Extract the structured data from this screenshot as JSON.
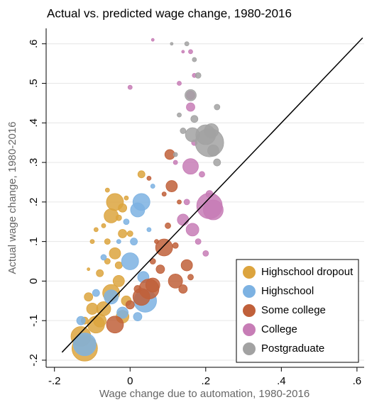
{
  "chart_data": {
    "type": "bubble",
    "title": "Actual vs. predicted wage change, 1980-2016",
    "x_label": "Wage change due to automation, 1980-2016",
    "y_label": "Actual wage change, 1980-2016",
    "xlim": [
      -0.222,
      0.619
    ],
    "ylim": [
      -0.218,
      0.639
    ],
    "xticks": [
      {
        "value": -0.2,
        "label": "-.2"
      },
      0,
      {
        "value": 0.2,
        "label": ".2"
      },
      {
        "value": 0.4,
        "label": ".4"
      },
      {
        "value": 0.6,
        "label": ".6"
      }
    ],
    "yticks": [
      {
        "value": -0.2,
        "label": "-.2"
      },
      {
        "value": -0.1,
        "label": "-.1"
      },
      0,
      {
        "value": 0.1,
        "label": ".1"
      },
      {
        "value": 0.2,
        "label": ".2"
      },
      {
        "value": 0.3,
        "label": ".3"
      },
      {
        "value": 0.4,
        "label": ".4"
      },
      {
        "value": 0.5,
        "label": ".5"
      },
      {
        "value": 0.6,
        "label": ".6"
      }
    ],
    "grid": true,
    "legend": "lower right",
    "fit_line": {
      "color": "#000000",
      "x": [
        -0.18,
        0.615
      ],
      "y": [
        -0.18,
        0.615
      ]
    },
    "series": [
      {
        "name": "Highschool dropout",
        "color": "#dca43e",
        "x": [
          -0.12,
          -0.13,
          -0.09,
          -0.07,
          -0.05,
          -0.03,
          -0.04,
          -0.02,
          -0.04,
          -0.05,
          -0.02,
          -0.1,
          -0.11,
          -0.08,
          -0.06,
          -0.03,
          0.03,
          -0.09,
          -0.07,
          -0.1,
          -0.06,
          -0.02,
          -0.01,
          -0.08,
          0.0,
          -0.12,
          -0.06,
          -0.03,
          -0.01,
          -0.11
        ],
        "y": [
          -0.17,
          -0.14,
          -0.11,
          -0.07,
          -0.03,
          0.0,
          0.07,
          0.12,
          0.2,
          0.165,
          0.185,
          -0.07,
          -0.04,
          0.02,
          0.1,
          0.04,
          0.27,
          0.13,
          0.14,
          0.1,
          0.23,
          -0.09,
          -0.05,
          -0.1,
          0.12,
          -0.1,
          0.05,
          0.16,
          0.21,
          0.03
        ],
        "sizes": [
          18,
          14,
          12,
          10,
          12,
          8,
          8,
          6,
          12,
          10,
          6,
          8,
          6,
          5,
          4,
          5,
          5,
          3,
          3,
          3,
          3,
          9,
          7,
          9,
          4,
          5,
          4,
          4,
          3,
          2
        ]
      },
      {
        "name": "Highschool",
        "color": "#7db2e2",
        "x": [
          -0.12,
          -0.13,
          0.03,
          0.02,
          0.0,
          0.04,
          0.035,
          -0.05,
          -0.02,
          0.01,
          -0.01,
          0.05,
          -0.07,
          0.06,
          -0.09,
          0.02,
          -0.03
        ],
        "y": [
          -0.16,
          -0.1,
          0.2,
          0.18,
          0.05,
          -0.05,
          0.01,
          -0.04,
          -0.08,
          0.1,
          0.15,
          0.13,
          0.06,
          0.24,
          -0.03,
          -0.09,
          0.1
        ],
        "sizes": [
          16,
          6,
          12,
          10,
          12,
          16,
          8,
          10,
          8,
          5,
          4,
          3,
          4,
          3,
          5,
          6,
          3
        ]
      },
      {
        "name": "Some college",
        "color": "#c0603a",
        "x": [
          0.05,
          0.03,
          0.06,
          -0.04,
          0.09,
          0.12,
          0.11,
          0.105,
          0.15,
          0.08,
          0.06,
          0.02,
          0.1,
          0.14,
          0.0,
          0.12,
          0.16,
          0.05,
          0.09,
          0.07,
          0.13
        ],
        "y": [
          -0.02,
          -0.04,
          -0.01,
          -0.11,
          0.085,
          0.0,
          0.24,
          0.32,
          0.04,
          0.03,
          0.05,
          -0.02,
          0.14,
          -0.02,
          -0.06,
          0.09,
          0.01,
          0.26,
          0.22,
          0.1,
          0.2
        ],
        "sizes": [
          14,
          12,
          10,
          12,
          12,
          10,
          8,
          7,
          8,
          6,
          4,
          5,
          4,
          6,
          6,
          4,
          4,
          3,
          3,
          3,
          3
        ]
      },
      {
        "name": "College",
        "color": "#c77db6",
        "x": [
          0.21,
          0.22,
          0.16,
          0.165,
          0.14,
          0.16,
          0.16,
          0.19,
          0.2,
          0.15,
          0.17,
          0.13,
          0.16,
          0.17,
          0.0,
          0.06,
          0.18,
          0.21,
          0.12,
          0.14
        ],
        "y": [
          0.19,
          0.18,
          0.29,
          0.13,
          0.155,
          0.47,
          0.44,
          0.27,
          0.07,
          0.2,
          0.35,
          0.5,
          0.58,
          0.52,
          0.49,
          0.61,
          0.1,
          0.22,
          0.3,
          0.58
        ],
        "sizes": [
          18,
          14,
          11,
          9,
          8,
          6,
          6,
          4,
          4,
          4,
          4,
          3,
          3,
          3,
          3,
          2,
          4,
          5,
          3,
          2
        ]
      },
      {
        "name": "Postgraduate",
        "color": "#a2a2a2",
        "x": [
          0.21,
          0.2,
          0.165,
          0.16,
          0.215,
          0.23,
          0.17,
          0.18,
          0.17,
          0.22,
          0.23,
          0.13,
          0.15,
          0.12,
          0.11,
          0.14
        ],
        "y": [
          0.35,
          0.37,
          0.37,
          0.47,
          0.38,
          0.44,
          0.41,
          0.52,
          0.56,
          0.33,
          0.3,
          0.42,
          0.6,
          0.32,
          0.6,
          0.38
        ],
        "sizes": [
          20,
          14,
          10,
          8,
          10,
          4,
          5,
          4,
          3,
          8,
          5,
          3,
          3,
          3,
          2,
          4
        ]
      }
    ]
  }
}
